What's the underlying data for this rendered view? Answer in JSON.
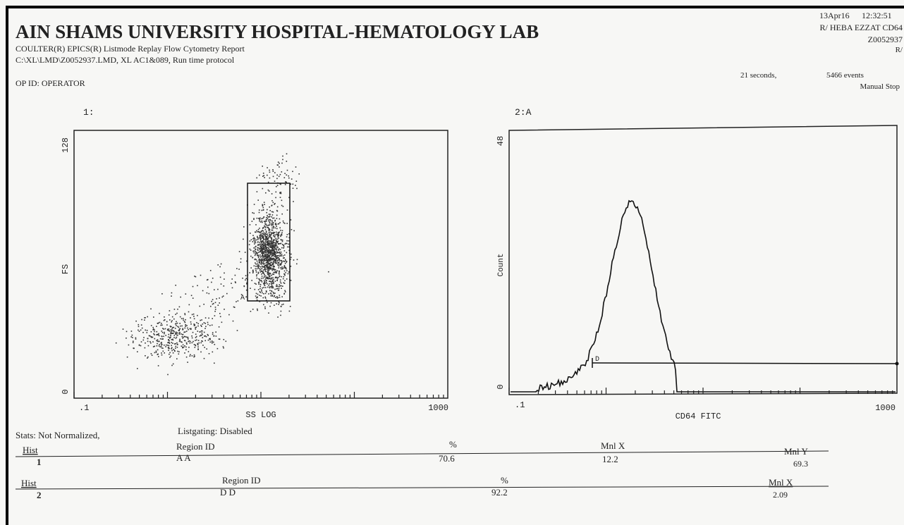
{
  "header": {
    "title": "AIN SHAMS UNIVERSITY HOSPITAL-HEMATOLOGY LAB",
    "line1": "COULTER(R) EPICS(R)  Listmode Replay Flow Cytometry Report",
    "line2": "C:\\XL\\LMD\\Z0052937.LMD,    XL AC1&089, Run time protocol",
    "op_id": "OP ID:   OPERATOR",
    "date": "13Apr16",
    "time": "12:32:51",
    "patient": "R/ HEBA EZZAT CD64",
    "file_id": "Z0052937",
    "r": "R/",
    "duration": "21 seconds,",
    "events": "5466 events",
    "stop": "Manual Stop"
  },
  "plots": [
    {
      "label": "1:",
      "y_top": "128",
      "y_bottom": "0",
      "y_label": "FS",
      "x_left": ".1",
      "x_right": "1000",
      "x_label": "SS LOG",
      "region": "A"
    },
    {
      "label": "2:A",
      "y_top": "48",
      "y_bottom": "0",
      "y_label": "Count",
      "x_left": ".1",
      "x_right": "1000",
      "x_label": "CD64 FITC",
      "region": "D"
    }
  ],
  "stats": {
    "normalized": "Stats:  Not Normalized,",
    "listgating": "Listgating:  Disabled",
    "table1": {
      "headers": [
        "Hist",
        "Region ID",
        "%",
        "Mnl X",
        "Mnl Y"
      ],
      "row": [
        "1",
        "A   A",
        "70.6",
        "12.2",
        "69.3"
      ]
    },
    "table2": {
      "headers": [
        "Hist",
        "Region  ID",
        "%",
        "Mnl X"
      ],
      "row": [
        "2",
        "D   D",
        "92.2",
        "2.09"
      ]
    }
  }
}
